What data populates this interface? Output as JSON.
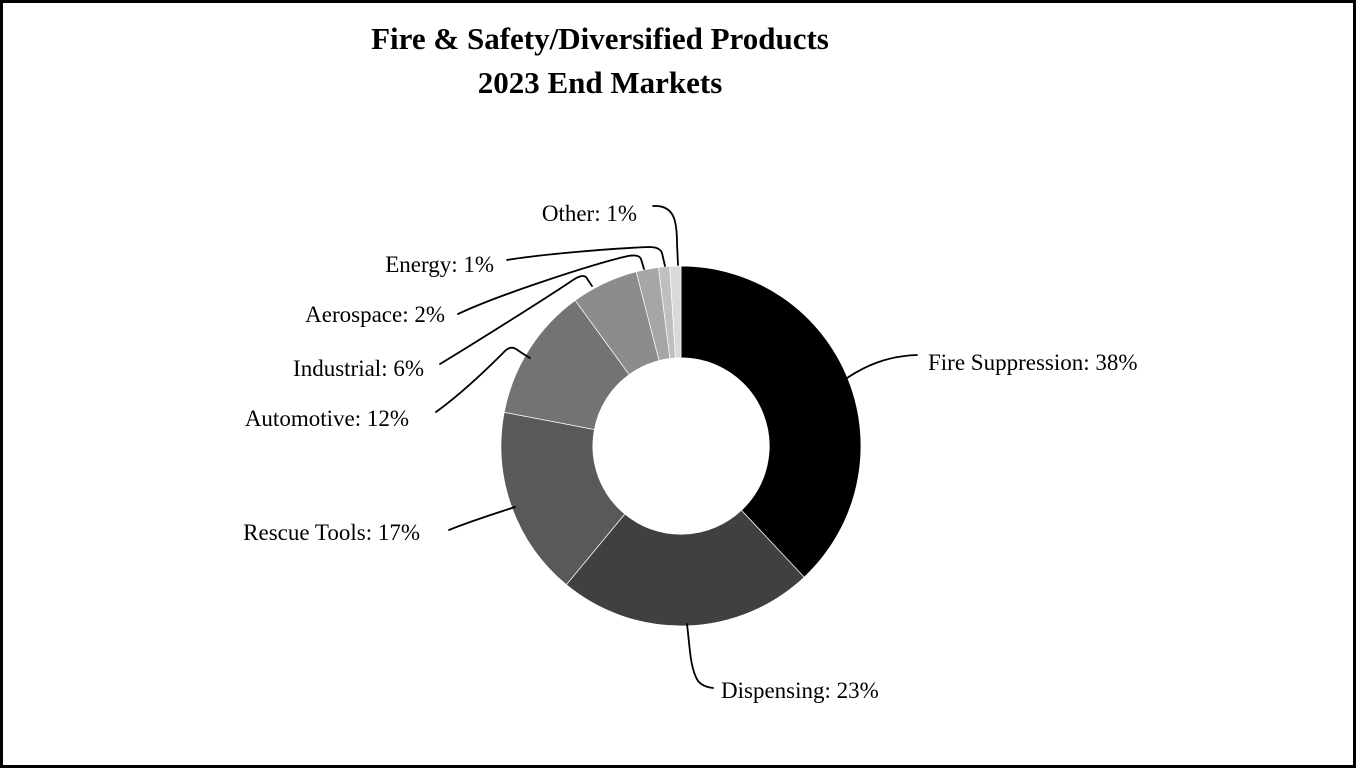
{
  "title": {
    "line1": "Fire & Safety/Diversified Products",
    "line2": "2023 End Markets"
  },
  "chart_data": {
    "type": "pie",
    "subtype": "donut",
    "title": "Fire & Safety/Diversified Products — 2023 End Markets",
    "unit": "%",
    "start_angle_deg": 0,
    "direction": "clockwise",
    "inner_radius_ratio": 0.49,
    "legend": "none",
    "labels_position": "outside-callouts-with-leader-lines",
    "segments": [
      {
        "label": "Fire Suppression",
        "value": 38,
        "color": "#000000",
        "callout": "Fire Suppression: 38%"
      },
      {
        "label": "Dispensing",
        "value": 23,
        "color": "#404040",
        "callout": "Dispensing: 23%"
      },
      {
        "label": "Rescue Tools",
        "value": 17,
        "color": "#595959",
        "callout": "Rescue Tools: 17%"
      },
      {
        "label": "Automotive",
        "value": 12,
        "color": "#737373",
        "callout": "Automotive: 12%"
      },
      {
        "label": "Industrial",
        "value": 6,
        "color": "#8C8C8C",
        "callout": "Industrial: 6%"
      },
      {
        "label": "Aerospace",
        "value": 2,
        "color": "#A6A6A6",
        "callout": "Aerospace: 2%"
      },
      {
        "label": "Energy",
        "value": 1,
        "color": "#BFBFBF",
        "callout": "Energy: 1%"
      },
      {
        "label": "Other",
        "value": 1,
        "color": "#D9D9D9",
        "callout": "Other: 1%"
      }
    ]
  }
}
